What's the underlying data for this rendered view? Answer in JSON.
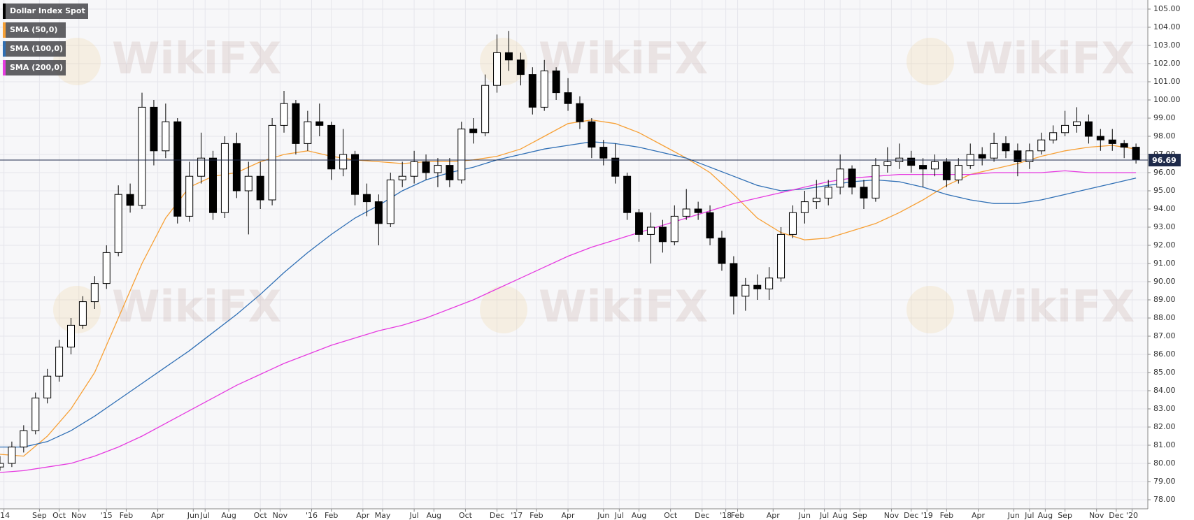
{
  "chart_data": {
    "type": "candlestick",
    "title": "Dollar Index Spot",
    "watermark": "WikiFX",
    "color_up": "#ffffff",
    "color_down": "#000000",
    "x": [
      0,
      3,
      6,
      9,
      12,
      15,
      18,
      21,
      24,
      27,
      30,
      33,
      36,
      39,
      42,
      45,
      48,
      51,
      54,
      57,
      60,
      63,
      66,
      69,
      72,
      75,
      78,
      81,
      84,
      87,
      90,
      93,
      96,
      99,
      102,
      105,
      108,
      111,
      114,
      117,
      120,
      123,
      126,
      129,
      132,
      135,
      138,
      141,
      144,
      147,
      150,
      153,
      156,
      159,
      162,
      165,
      168,
      171,
      174,
      177,
      180,
      183,
      186,
      189,
      192,
      195,
      198,
      201,
      204,
      207,
      210,
      213,
      216,
      219,
      222,
      225,
      228,
      231,
      234,
      237,
      240,
      243,
      246,
      249,
      252,
      255,
      258,
      261,
      264,
      267,
      270,
      273,
      276,
      279,
      282,
      285,
      288
    ],
    "open": [
      79.8,
      80.0,
      80.9,
      81.8,
      83.6,
      84.8,
      86.4,
      87.6,
      88.9,
      89.9,
      91.6,
      94.8,
      94.2,
      99.6,
      97.2,
      98.8,
      93.6,
      95.8,
      96.8,
      93.8,
      97.6,
      95.0,
      95.8,
      94.5,
      98.6,
      99.8,
      97.6,
      98.8,
      98.6,
      96.2,
      97.0,
      94.8,
      94.4,
      93.2,
      95.6,
      95.8,
      96.6,
      96.0,
      96.4,
      95.6,
      98.4,
      98.2,
      100.8,
      102.6,
      102.2,
      101.4,
      99.6,
      101.6,
      100.4,
      99.8,
      98.8,
      97.4,
      96.8,
      95.8,
      93.8,
      92.6,
      93.0,
      92.2,
      93.6,
      94.0,
      93.8,
      92.4,
      91.0,
      89.2,
      89.8,
      89.6,
      90.2,
      92.6,
      93.8,
      94.4,
      94.6,
      95.2,
      96.2,
      95.2,
      94.6,
      96.4,
      96.6,
      96.8,
      96.4,
      96.2,
      96.6,
      95.6,
      96.4,
      97.0,
      96.8,
      97.6,
      97.2,
      96.6,
      97.2,
      97.8,
      98.2,
      98.6,
      98.8,
      98.0,
      97.8,
      97.6,
      97.4
    ],
    "high": [
      80.4,
      81.2,
      82.1,
      83.9,
      85.2,
      86.8,
      88.0,
      89.2,
      90.3,
      92.0,
      95.3,
      95.4,
      100.4,
      100.0,
      99.8,
      99.0,
      96.6,
      98.2,
      97.2,
      98.0,
      98.2,
      96.6,
      96.6,
      99.0,
      100.5,
      100.0,
      99.4,
      99.8,
      98.8,
      98.4,
      97.2,
      95.4,
      94.8,
      96.0,
      96.6,
      97.2,
      97.0,
      96.8,
      96.8,
      98.8,
      99.0,
      101.4,
      103.6,
      103.8,
      102.6,
      101.8,
      102.2,
      101.8,
      101.2,
      100.2,
      99.0,
      97.8,
      97.6,
      96.0,
      94.0,
      93.8,
      93.4,
      94.2,
      95.1,
      94.4,
      94.2,
      92.8,
      91.4,
      90.2,
      90.4,
      90.8,
      93.0,
      94.2,
      95.0,
      95.6,
      95.6,
      97.0,
      96.4,
      95.6,
      96.8,
      97.4,
      97.6,
      97.2,
      96.8,
      97.0,
      96.8,
      96.8,
      97.6,
      97.4,
      98.2,
      98.0,
      97.6,
      97.6,
      98.2,
      98.6,
      99.4,
      99.6,
      99.2,
      98.4,
      98.4,
      97.8,
      97.6
    ],
    "low": [
      79.6,
      79.8,
      80.6,
      81.6,
      83.3,
      84.5,
      86.0,
      87.4,
      88.5,
      89.6,
      91.4,
      93.8,
      94.0,
      96.4,
      96.8,
      93.2,
      93.3,
      95.4,
      93.4,
      93.5,
      94.6,
      92.6,
      94.0,
      94.2,
      98.2,
      97.0,
      97.2,
      98.0,
      95.6,
      95.8,
      94.2,
      93.6,
      92.0,
      93.0,
      95.2,
      95.4,
      95.6,
      95.2,
      95.2,
      95.4,
      97.6,
      98.0,
      100.4,
      101.6,
      100.8,
      99.2,
      99.4,
      100.0,
      99.4,
      98.4,
      96.8,
      96.4,
      95.4,
      93.4,
      92.2,
      91.0,
      91.6,
      92.0,
      93.4,
      93.4,
      92.0,
      90.6,
      88.2,
      88.4,
      89.0,
      89.0,
      90.0,
      92.4,
      93.2,
      94.0,
      94.2,
      94.8,
      94.8,
      94.0,
      94.4,
      96.0,
      96.2,
      96.0,
      95.2,
      95.8,
      95.2,
      95.4,
      96.2,
      96.4,
      96.6,
      96.8,
      95.8,
      96.2,
      97.0,
      97.6,
      98.0,
      98.2,
      97.6,
      97.2,
      97.2,
      96.8,
      96.5
    ],
    "close": [
      80.0,
      80.9,
      81.8,
      83.6,
      84.8,
      86.4,
      87.6,
      88.9,
      89.9,
      91.6,
      94.8,
      94.2,
      99.6,
      97.2,
      98.8,
      93.6,
      95.8,
      96.8,
      93.8,
      97.6,
      95.0,
      95.8,
      94.5,
      98.6,
      99.8,
      97.6,
      98.8,
      98.6,
      96.2,
      97.0,
      94.8,
      94.4,
      93.2,
      95.6,
      95.8,
      96.6,
      96.0,
      96.4,
      95.6,
      98.4,
      98.2,
      100.8,
      102.6,
      102.2,
      101.4,
      99.6,
      101.6,
      100.4,
      99.8,
      98.8,
      97.4,
      96.8,
      95.8,
      93.8,
      92.6,
      93.0,
      92.2,
      93.6,
      94.0,
      93.8,
      92.4,
      91.0,
      89.2,
      89.8,
      89.6,
      90.2,
      92.6,
      93.8,
      94.4,
      94.6,
      95.2,
      96.2,
      95.2,
      94.6,
      96.4,
      96.6,
      96.8,
      96.4,
      96.2,
      96.6,
      95.6,
      96.4,
      97.0,
      96.8,
      97.6,
      97.2,
      96.6,
      97.2,
      97.8,
      98.2,
      98.6,
      98.8,
      98.0,
      97.8,
      97.6,
      97.4,
      96.7
    ],
    "series": [
      {
        "name": "SMA (50,0)",
        "color": "#f7a035",
        "x": [
          0,
          6,
          12,
          18,
          24,
          30,
          36,
          42,
          48,
          54,
          60,
          66,
          72,
          78,
          84,
          90,
          96,
          102,
          108,
          114,
          120,
          126,
          132,
          138,
          144,
          150,
          156,
          162,
          168,
          174,
          180,
          186,
          192,
          198,
          204,
          210,
          216,
          222,
          228,
          234,
          240,
          246,
          252,
          258,
          264,
          270,
          276,
          282,
          288
        ],
        "values": [
          80.5,
          80.4,
          81.5,
          83.0,
          85.0,
          88.0,
          91.0,
          93.5,
          95.2,
          95.8,
          96.0,
          96.6,
          97.0,
          97.2,
          96.9,
          96.7,
          96.6,
          96.5,
          96.6,
          96.6,
          96.7,
          96.9,
          97.3,
          98.0,
          98.7,
          98.9,
          98.7,
          98.2,
          97.5,
          96.8,
          96.0,
          94.8,
          93.5,
          92.7,
          92.3,
          92.4,
          92.8,
          93.2,
          93.8,
          94.5,
          95.3,
          95.9,
          96.2,
          96.5,
          96.9,
          97.2,
          97.4,
          97.5,
          97.3
        ]
      },
      {
        "name": "SMA (100,0)",
        "color": "#2f6fb5",
        "x": [
          0,
          6,
          12,
          18,
          24,
          30,
          36,
          42,
          48,
          54,
          60,
          66,
          72,
          78,
          84,
          90,
          96,
          102,
          108,
          114,
          120,
          126,
          132,
          138,
          144,
          150,
          156,
          162,
          168,
          174,
          180,
          186,
          192,
          198,
          204,
          210,
          216,
          222,
          228,
          234,
          240,
          246,
          252,
          258,
          264,
          270,
          276,
          282,
          288
        ],
        "values": [
          80.9,
          80.9,
          81.2,
          81.8,
          82.6,
          83.5,
          84.4,
          85.3,
          86.2,
          87.2,
          88.2,
          89.3,
          90.5,
          91.6,
          92.6,
          93.5,
          94.2,
          95.0,
          95.6,
          96.0,
          96.3,
          96.7,
          97.0,
          97.3,
          97.5,
          97.7,
          97.6,
          97.4,
          97.1,
          96.8,
          96.3,
          95.8,
          95.3,
          95.0,
          95.1,
          95.3,
          95.5,
          95.6,
          95.5,
          95.2,
          94.8,
          94.5,
          94.3,
          94.3,
          94.5,
          94.8,
          95.1,
          95.4,
          95.7
        ]
      },
      {
        "name": "SMA (200,0)",
        "color": "#e63be0",
        "x": [
          0,
          6,
          12,
          18,
          24,
          30,
          36,
          42,
          48,
          54,
          60,
          66,
          72,
          78,
          84,
          90,
          96,
          102,
          108,
          114,
          120,
          126,
          132,
          138,
          144,
          150,
          156,
          162,
          168,
          174,
          180,
          186,
          192,
          198,
          204,
          210,
          216,
          222,
          228,
          234,
          240,
          246,
          252,
          258,
          264,
          270,
          276,
          282,
          288
        ],
        "values": [
          79.5,
          79.6,
          79.8,
          80.0,
          80.4,
          80.9,
          81.5,
          82.2,
          82.9,
          83.6,
          84.3,
          84.9,
          85.5,
          86.0,
          86.5,
          86.9,
          87.3,
          87.6,
          88.0,
          88.5,
          89.0,
          89.6,
          90.2,
          90.8,
          91.4,
          91.9,
          92.3,
          92.7,
          93.1,
          93.5,
          93.9,
          94.3,
          94.6,
          94.9,
          95.2,
          95.5,
          95.7,
          95.8,
          95.9,
          95.9,
          95.9,
          95.9,
          96.0,
          96.0,
          96.0,
          96.1,
          96.0,
          96.0,
          96.0
        ]
      }
    ],
    "last_value": 96.69,
    "grid": true,
    "xlim": [
      0,
      291
    ],
    "ylim": [
      77.5,
      105.5
    ],
    "xticks": [
      {
        "value": 1,
        "label": "'14"
      },
      {
        "value": 10,
        "label": "Sep"
      },
      {
        "value": 15,
        "label": "Oct"
      },
      {
        "value": 20,
        "label": "Nov"
      },
      {
        "value": 27,
        "label": "'15"
      },
      {
        "value": 32,
        "label": "Feb"
      },
      {
        "value": 40,
        "label": "Apr"
      },
      {
        "value": 49,
        "label": "Jun"
      },
      {
        "value": 52,
        "label": "Jul"
      },
      {
        "value": 58,
        "label": "Aug"
      },
      {
        "value": 66,
        "label": "Oct"
      },
      {
        "value": 71,
        "label": "Nov"
      },
      {
        "value": 79,
        "label": "'16"
      },
      {
        "value": 84,
        "label": "Feb"
      },
      {
        "value": 92,
        "label": "Apr"
      },
      {
        "value": 97,
        "label": "May"
      },
      {
        "value": 105,
        "label": "Jul"
      },
      {
        "value": 110,
        "label": "Aug"
      },
      {
        "value": 118,
        "label": "Oct"
      },
      {
        "value": 126,
        "label": "Dec"
      },
      {
        "value": 131,
        "label": "'17"
      },
      {
        "value": 136,
        "label": "Feb"
      },
      {
        "value": 144,
        "label": "Apr"
      },
      {
        "value": 153,
        "label": "Jun"
      },
      {
        "value": 157,
        "label": "Jul"
      },
      {
        "value": 162,
        "label": "Aug"
      },
      {
        "value": 170,
        "label": "Oct"
      },
      {
        "value": 178,
        "label": "Dec"
      },
      {
        "value": 184,
        "label": "'18"
      },
      {
        "value": 187,
        "label": "Feb"
      },
      {
        "value": 196,
        "label": "Apr"
      },
      {
        "value": 204,
        "label": "Jun"
      },
      {
        "value": 209,
        "label": "Jul"
      },
      {
        "value": 213,
        "label": "Aug"
      },
      {
        "value": 218,
        "label": "Sep"
      },
      {
        "value": 226,
        "label": "Nov"
      },
      {
        "value": 231,
        "label": "Dec"
      },
      {
        "value": 235,
        "label": "'19"
      },
      {
        "value": 240,
        "label": "Feb"
      },
      {
        "value": 248,
        "label": "Apr"
      },
      {
        "value": 257,
        "label": "Jun"
      },
      {
        "value": 261,
        "label": "Jul"
      },
      {
        "value": 265,
        "label": "Aug"
      },
      {
        "value": 270,
        "label": "Sep"
      },
      {
        "value": 278,
        "label": "Nov"
      },
      {
        "value": 283,
        "label": "Dec"
      },
      {
        "value": 287,
        "label": "'20"
      }
    ],
    "yticks": [
      {
        "value": 78,
        "label": "78.00"
      },
      {
        "value": 79,
        "label": "79.00"
      },
      {
        "value": 80,
        "label": "80.00"
      },
      {
        "value": 81,
        "label": "81.00"
      },
      {
        "value": 82,
        "label": "82.00"
      },
      {
        "value": 83,
        "label": "83.00"
      },
      {
        "value": 84,
        "label": "84.00"
      },
      {
        "value": 85,
        "label": "85.00"
      },
      {
        "value": 86,
        "label": "86.00"
      },
      {
        "value": 87,
        "label": "87.00"
      },
      {
        "value": 88,
        "label": "88.00"
      },
      {
        "value": 89,
        "label": "89.00"
      },
      {
        "value": 90,
        "label": "90.00"
      },
      {
        "value": 91,
        "label": "91.00"
      },
      {
        "value": 92,
        "label": "92.00"
      },
      {
        "value": 93,
        "label": "93.00"
      },
      {
        "value": 94,
        "label": "94.00"
      },
      {
        "value": 95,
        "label": "95.00"
      },
      {
        "value": 96,
        "label": "96.00"
      },
      {
        "value": 97,
        "label": "97.00"
      },
      {
        "value": 98,
        "label": "98.00"
      },
      {
        "value": 99,
        "label": "99.00"
      },
      {
        "value": 100,
        "label": "100.00"
      },
      {
        "value": 101,
        "label": "101.00"
      },
      {
        "value": 102,
        "label": "102.00"
      },
      {
        "value": 103,
        "label": "103.00"
      },
      {
        "value": 104,
        "label": "104.00"
      },
      {
        "value": 105,
        "label": "105.00"
      }
    ]
  }
}
